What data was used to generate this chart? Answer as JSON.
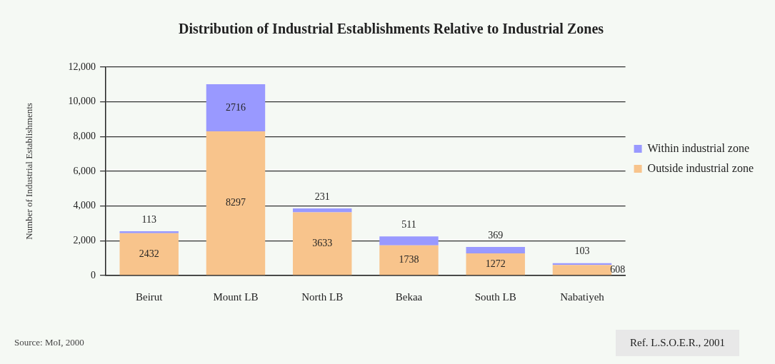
{
  "chart_data": {
    "type": "bar",
    "title": "Distribution of Industrial Establishments Relative to Industrial Zones",
    "ylabel": "Number of Industrial Establishments",
    "categories": [
      "Beirut",
      "Mount LB",
      "North LB",
      "Bekaa",
      "South LB",
      "Nabatiyeh"
    ],
    "series": [
      {
        "name": "Outside industrial zone",
        "color": "#f8c48c",
        "values": [
          2432,
          8297,
          3633,
          1738,
          1272,
          608
        ]
      },
      {
        "name": "Within industrial zone",
        "color": "#9999ff",
        "values": [
          113,
          2716,
          231,
          511,
          369,
          103
        ]
      }
    ],
    "stacked": true,
    "data_labels": true,
    "ylim": [
      0,
      12000
    ],
    "yticks": [
      {
        "value": 0,
        "label": "0"
      },
      {
        "value": 2000,
        "label": "2,000"
      },
      {
        "value": 4000,
        "label": "4,000"
      },
      {
        "value": 6000,
        "label": "6,000"
      },
      {
        "value": 8000,
        "label": "8,000"
      },
      {
        "value": 10000,
        "label": "10,000"
      },
      {
        "value": 12000,
        "label": "12,000"
      }
    ],
    "grid": "y",
    "legend": "right",
    "annotations": [
      "Source: MoI, 2000",
      "Ref.  L.S.O.E.R., 2001"
    ]
  }
}
